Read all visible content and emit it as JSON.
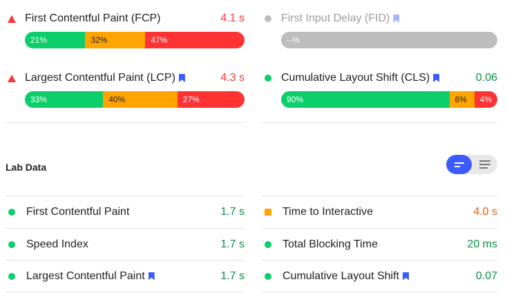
{
  "field": {
    "fcp": {
      "label": "First Contentful Paint (FCP)",
      "value": "4.1 s",
      "good": "21%",
      "avg": "32%",
      "poor": "47%",
      "good_frac": 0.21,
      "avg_frac": 0.32,
      "poor_frac": 0.47
    },
    "fid": {
      "label": "First Input Delay (FID)",
      "none": "--%"
    },
    "lcp": {
      "label": "Largest Contentful Paint (LCP)",
      "value": "4.3 s",
      "good": "33%",
      "avg": "40%",
      "poor": "27%",
      "good_frac": 0.33,
      "avg_frac": 0.4,
      "poor_frac": 0.27
    },
    "cls": {
      "label": "Cumulative Layout Shift (CLS)",
      "value": "0.06",
      "good": "90%",
      "avg": "6%",
      "poor": "4%",
      "good_frac": 0.9,
      "avg_frac": 0.06,
      "poor_frac": 0.04
    }
  },
  "lab": {
    "title": "Lab Data",
    "items": [
      {
        "label": "First Contentful Paint",
        "value": "1.7 s"
      },
      {
        "label": "Time to Interactive",
        "value": "4.0 s"
      },
      {
        "label": "Speed Index",
        "value": "1.7 s"
      },
      {
        "label": "Total Blocking Time",
        "value": "20 ms"
      },
      {
        "label": "Largest Contentful Paint",
        "value": "1.7 s"
      },
      {
        "label": "Cumulative Layout Shift",
        "value": "0.07"
      }
    ]
  },
  "icons": {
    "poor": "red-triangle-icon",
    "good": "green-circle-icon",
    "average": "orange-square-icon",
    "nodata": "gray-circle-icon",
    "core_vital": "bookmark-icon"
  },
  "colors": {
    "good": "#0cce6b",
    "average": "#ffa400",
    "poor": "#ff3333",
    "accent": "#3d5afe"
  }
}
